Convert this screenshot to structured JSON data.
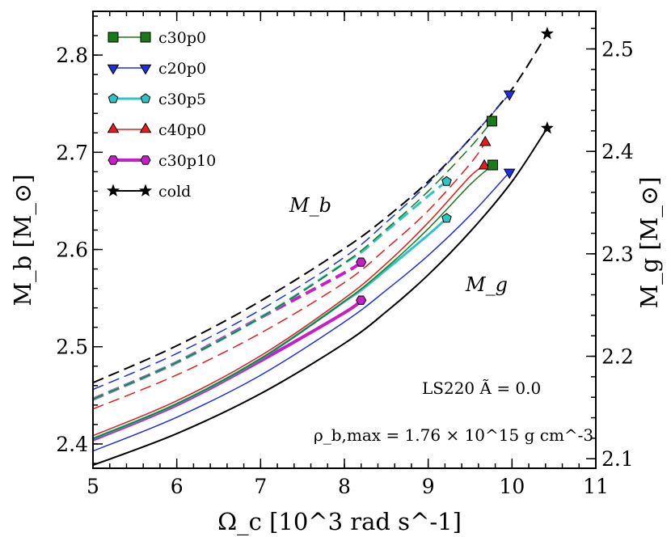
{
  "chart_data": {
    "type": "line",
    "xlabel": "Ω_c [10^3 rad s^-1]",
    "ylabel_left": "M_b [M_⊙]",
    "ylabel_right": "M_g [M_⊙]",
    "xlim": [
      5,
      11
    ],
    "ylim_left": [
      2.375,
      2.845
    ],
    "ylim_right": [
      2.0907,
      2.5367
    ],
    "xticks": [
      "5",
      "6",
      "7",
      "8",
      "9",
      "10",
      "11"
    ],
    "yticks_left": [
      "2.4",
      "2.5",
      "2.6",
      "2.7",
      "2.8"
    ],
    "yticks_right": [
      "2.1",
      "2.2",
      "2.3",
      "2.4",
      "2.5"
    ],
    "annotation_mb": "M_b",
    "annotation_mg": "M_g",
    "eos_label": "LS220  Ã = 0.0",
    "rho_label": "ρ_b,max = 1.76 × 10^15  g cm^-3",
    "legend_position": "top-left",
    "series": [
      {
        "name": "c30p0",
        "color": "#1a7a1a",
        "marker": "square",
        "lw": 1.5,
        "mb": {
          "x": [
            5,
            6,
            7,
            8,
            8.5,
            9,
            9.5,
            9.76
          ],
          "y": [
            2.446,
            2.484,
            2.53,
            2.586,
            2.621,
            2.66,
            2.705,
            2.732
          ]
        },
        "mg": {
          "x": [
            5,
            6,
            7,
            8,
            8.5,
            9,
            9.5,
            9.77
          ],
          "y": [
            2.1195,
            2.1535,
            2.1975,
            2.2535,
            2.2865,
            2.3245,
            2.3675,
            2.3867
          ]
        }
      },
      {
        "name": "c20p0",
        "color": "#1f2fe0",
        "marker": "triangle-down",
        "lw": 1.5,
        "mb": {
          "x": [
            5,
            6,
            7,
            8,
            8.5,
            9,
            9.5,
            9.97
          ],
          "y": [
            2.456,
            2.493,
            2.538,
            2.592,
            2.628,
            2.668,
            2.714,
            2.76
          ]
        },
        "mg": {
          "x": [
            5,
            6,
            7,
            8,
            8.5,
            9,
            9.5,
            9.97
          ],
          "y": [
            2.1075,
            2.1405,
            2.1815,
            2.2335,
            2.2645,
            2.2985,
            2.3375,
            2.3797
          ]
        }
      },
      {
        "name": "c30p5",
        "color": "#2ec4c4",
        "marker": "pentagon",
        "lw": 3,
        "mb": {
          "x": [
            5,
            6,
            7,
            8,
            8.2,
            8.5,
            9,
            9.22
          ],
          "y": [
            2.446,
            2.484,
            2.53,
            2.586,
            2.597,
            2.619,
            2.655,
            2.67
          ]
        },
        "mg": {
          "x": [
            5,
            6,
            7,
            8,
            8.2,
            8.5,
            9,
            9.22
          ],
          "y": [
            2.1195,
            2.1535,
            2.1975,
            2.2535,
            2.2645,
            2.2845,
            2.3185,
            2.3347
          ]
        }
      },
      {
        "name": "c40p0",
        "color": "#e81a1a",
        "marker": "triangle-up",
        "lw": 1.5,
        "mb": {
          "x": [
            5,
            6,
            7,
            8,
            8.5,
            9,
            9.5,
            9.68
          ],
          "y": [
            2.436,
            2.471,
            2.514,
            2.566,
            2.601,
            2.64,
            2.688,
            2.71
          ]
        },
        "mg": {
          "x": [
            5,
            6,
            7,
            8,
            8.5,
            9,
            9.5,
            9.67
          ],
          "y": [
            2.1225,
            2.1565,
            2.2005,
            2.2565,
            2.2905,
            2.3305,
            2.3755,
            2.3857
          ]
        }
      },
      {
        "name": "c30p10",
        "color": "#c81ec8",
        "marker": "hexagon",
        "lw": 4,
        "mb": {
          "x": [
            5,
            6,
            7,
            8,
            8.2
          ],
          "y": [
            2.446,
            2.484,
            2.53,
            2.576,
            2.587
          ]
        },
        "mg": {
          "x": [
            5,
            6,
            7,
            8,
            8.2
          ],
          "y": [
            2.1185,
            2.1525,
            2.1955,
            2.2425,
            2.2547
          ]
        }
      },
      {
        "name": "cold",
        "color": "#000000",
        "marker": "star",
        "lw": 2,
        "mb": {
          "x": [
            5,
            6,
            7,
            8,
            8.5,
            9,
            9.5,
            10,
            10.42
          ],
          "y": [
            2.463,
            2.501,
            2.547,
            2.601,
            2.633,
            2.67,
            2.714,
            2.765,
            2.822
          ]
        },
        "mg": {
          "x": [
            5,
            6,
            7,
            8,
            8.5,
            9,
            9.5,
            10,
            10.42
          ],
          "y": [
            2.0937,
            2.1245,
            2.1635,
            2.2125,
            2.2435,
            2.2795,
            2.3215,
            2.3705,
            2.4227
          ]
        }
      }
    ]
  }
}
